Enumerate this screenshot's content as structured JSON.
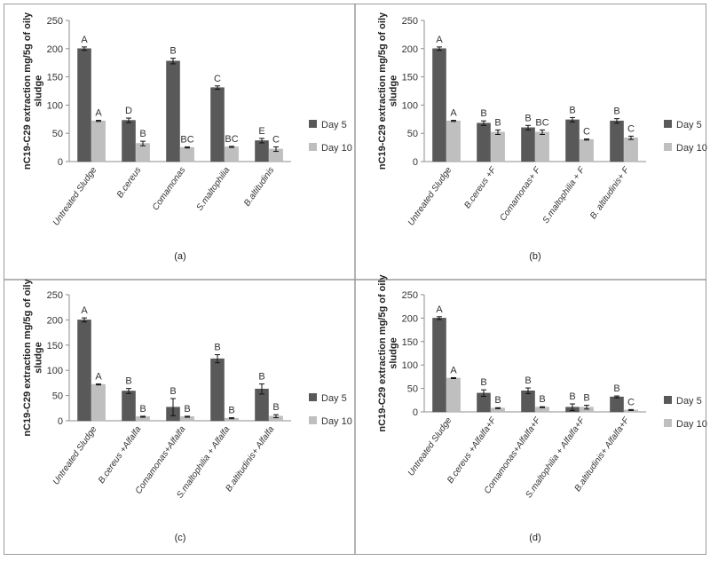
{
  "colors": {
    "day5": "#595959",
    "day10": "#bfbfbf",
    "frame": "#9a9a9a",
    "axis": "#8c8c8c"
  },
  "chart_data": [
    {
      "type": "bar",
      "panel_label": "(a)",
      "ylabel": "nC19-C29 extraction mg/5g of oily sludge",
      "ylim": [
        0,
        250
      ],
      "yticks": [
        0,
        50,
        100,
        150,
        200,
        250
      ],
      "legend_position": "right",
      "categories": [
        "Untreated Sludge",
        "B.cereus",
        "Comamonas",
        "S.maltophilia",
        "B.altitudinis"
      ],
      "series": [
        {
          "name": "Day 5",
          "values": [
            200,
            73,
            178,
            131,
            37
          ],
          "errors": [
            3,
            4,
            5,
            3,
            4
          ],
          "letters": [
            "A",
            "D",
            "B",
            "C",
            "E"
          ]
        },
        {
          "name": "Day 10",
          "values": [
            72,
            32,
            25,
            26,
            22
          ],
          "errors": [
            1,
            4,
            1,
            1,
            4
          ],
          "letters": [
            "A",
            "B",
            "BC",
            "BC",
            "C"
          ]
        }
      ]
    },
    {
      "type": "bar",
      "panel_label": "(b)",
      "ylabel": "nC19-C29 extraction mg/5g of oily sludge",
      "ylim": [
        0,
        250
      ],
      "yticks": [
        0,
        50,
        100,
        150,
        200,
        250
      ],
      "legend_position": "right",
      "categories": [
        "Untreated Sludge",
        "B.cereus +F",
        "Comamonas+ F",
        "S.maltophilia + F",
        "B. altitudinis+ F"
      ],
      "series": [
        {
          "name": "Day 5",
          "values": [
            200,
            68,
            60,
            74,
            72
          ],
          "errors": [
            3,
            4,
            4,
            4,
            4
          ],
          "letters": [
            "A",
            "B",
            "B",
            "B",
            "B"
          ]
        },
        {
          "name": "Day 10",
          "values": [
            72,
            52,
            52,
            39,
            42
          ],
          "errors": [
            1,
            4,
            4,
            1,
            3
          ],
          "letters": [
            "A",
            "B",
            "BC",
            "C",
            "C"
          ]
        }
      ]
    },
    {
      "type": "bar",
      "panel_label": "(c)",
      "ylabel": "nC19-C29 extraction mg/5g of oily sludge",
      "ylim": [
        0,
        250
      ],
      "yticks": [
        0,
        50,
        100,
        150,
        200,
        250
      ],
      "legend_position": "right",
      "categories": [
        "Untreated Sludge",
        "B.cereus +Alfalfa",
        "Comamonas+Alfalfa",
        "S.maltophilia + Alfalfa",
        "B.altitudinis+ Alfalfa"
      ],
      "series": [
        {
          "name": "Day 5",
          "values": [
            200,
            59,
            27,
            123,
            63
          ],
          "errors": [
            4,
            5,
            17,
            8,
            10
          ],
          "letters": [
            "A",
            "B",
            "B",
            "B",
            "B"
          ]
        },
        {
          "name": "Day 10",
          "values": [
            72,
            8,
            8,
            5,
            9
          ],
          "errors": [
            1,
            1,
            1,
            1,
            3
          ],
          "letters": [
            "A",
            "B",
            "B",
            "B",
            "B"
          ]
        }
      ]
    },
    {
      "type": "bar",
      "panel_label": "(d)",
      "ylabel": "nC19-C29 extraction mg/5g of oily sludge",
      "ylim": [
        0,
        250
      ],
      "yticks": [
        0,
        50,
        100,
        150,
        200,
        250
      ],
      "legend_position": "right",
      "categories": [
        "Untreated Sludge",
        "B.cereus +Alfalfa+F",
        "Comamonas+Alfalfa+F",
        "S.maltophilia + Alfalfa+F",
        "B.altitudinis+ Alfalfa+F"
      ],
      "series": [
        {
          "name": "Day 5",
          "values": [
            200,
            40,
            45,
            10,
            32
          ],
          "errors": [
            3,
            7,
            6,
            7,
            2
          ],
          "letters": [
            "A",
            "B",
            "B",
            "B",
            "B"
          ]
        },
        {
          "name": "Day 10",
          "values": [
            72,
            8,
            10,
            10,
            4
          ],
          "errors": [
            1,
            1,
            1,
            4,
            1
          ],
          "letters": [
            "A",
            "B",
            "B",
            "B",
            "C"
          ]
        }
      ]
    }
  ]
}
